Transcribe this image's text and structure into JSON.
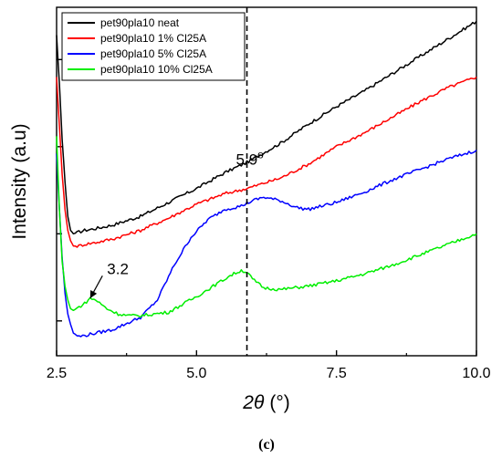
{
  "chart_data": {
    "type": "line",
    "caption": "(c)",
    "xlabel_symbol": "2θ",
    "xlabel_unit": "(°)",
    "ylabel": "Intensity (a.u)",
    "xlim": [
      2.5,
      10.0
    ],
    "ylim": [
      0,
      100
    ],
    "x_ticks": [
      "2.5",
      "5.0",
      "7.5",
      "10.0"
    ],
    "x_tick_values": [
      2.5,
      5.0,
      7.5,
      10.0
    ],
    "y_ticks": [
      10,
      35,
      60,
      85
    ],
    "y_tick_labels_shown": false,
    "grid": false,
    "legend_position": "top-left",
    "annotations": [
      {
        "text": "5.9",
        "superscript": "o",
        "x": 5.9,
        "y": 57,
        "style": "dashed-vertical-line"
      },
      {
        "text": "3.2",
        "arrow_to": [
          3.1,
          16.5
        ],
        "x": 3.45,
        "y": 24
      }
    ],
    "series": [
      {
        "name": "pet90pla10 neat",
        "color": "#000000",
        "x": [
          2.5,
          2.55,
          2.6,
          2.65,
          2.7,
          2.75,
          2.8,
          2.9,
          3.0,
          3.2,
          3.5,
          4.0,
          4.5,
          5.0,
          5.5,
          5.9,
          6.5,
          7.0,
          7.5,
          8.0,
          8.5,
          9.0,
          9.5,
          10.0
        ],
        "y": [
          92,
          78,
          62,
          50,
          40,
          36,
          35,
          35.5,
          36,
          36.5,
          37.5,
          40,
          44,
          48,
          52.5,
          55.5,
          61,
          66.5,
          71.5,
          76,
          81,
          86,
          91,
          96
        ]
      },
      {
        "name": "pet90pla10 1% Cl25A",
        "color": "#ff0000",
        "x": [
          2.5,
          2.55,
          2.6,
          2.65,
          2.7,
          2.75,
          2.8,
          2.9,
          3.0,
          3.2,
          3.5,
          4.0,
          4.5,
          5.0,
          5.5,
          5.9,
          6.5,
          7.0,
          7.5,
          8.0,
          8.5,
          9.0,
          9.5,
          10.0
        ],
        "y": [
          80,
          66,
          52,
          42,
          36,
          33,
          31.5,
          31.5,
          32,
          32.5,
          33.5,
          36,
          39.5,
          43.5,
          46.5,
          48,
          51,
          55,
          60,
          64,
          68.5,
          73,
          77,
          80
        ]
      },
      {
        "name": "pet90pla10 5% Cl25A",
        "color": "#0000ff",
        "x": [
          2.5,
          2.55,
          2.6,
          2.65,
          2.7,
          2.75,
          2.8,
          2.9,
          3.0,
          3.2,
          3.5,
          4.0,
          4.3,
          4.6,
          4.9,
          5.2,
          5.5,
          5.8,
          6.0,
          6.2,
          6.5,
          6.8,
          7.0,
          7.5,
          8.0,
          8.5,
          9.0,
          9.5,
          10.0
        ],
        "y": [
          58,
          42,
          28,
          18,
          12,
          9,
          6.5,
          5.5,
          5.8,
          6.5,
          7.5,
          11,
          16,
          26,
          34,
          39,
          42,
          43,
          44.5,
          45.5,
          44.5,
          42.5,
          42,
          44,
          47,
          50.5,
          53.5,
          56.5,
          59
        ]
      },
      {
        "name": "pet90pla10 10% Cl25A",
        "color": "#00ee00",
        "x": [
          2.5,
          2.55,
          2.6,
          2.65,
          2.7,
          2.75,
          2.8,
          2.9,
          3.0,
          3.1,
          3.2,
          3.4,
          3.6,
          3.8,
          4.0,
          4.5,
          5.0,
          5.3,
          5.6,
          5.8,
          5.9,
          6.0,
          6.2,
          6.5,
          7.0,
          7.5,
          8.0,
          8.5,
          9.0,
          9.5,
          10.0
        ],
        "y": [
          63,
          42,
          27,
          20,
          16,
          13.5,
          13,
          14,
          15,
          16.5,
          16,
          13.5,
          12,
          11.5,
          11.5,
          12.5,
          17,
          20,
          23,
          24.5,
          24,
          22,
          19.5,
          19,
          20,
          21.5,
          23.5,
          26,
          29,
          32,
          35
        ]
      }
    ]
  }
}
